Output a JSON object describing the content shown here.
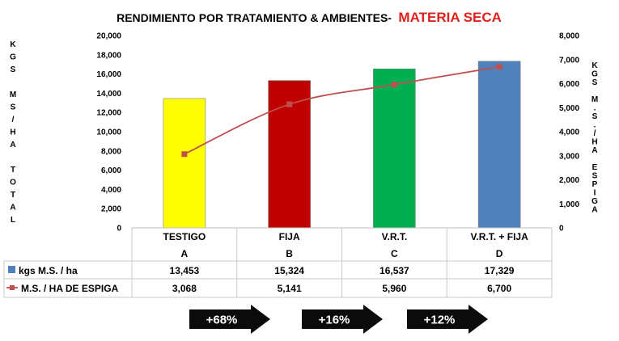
{
  "chart_data": {
    "type": "bar",
    "title": "RENDIMIENTO POR TRATAMIENTO & AMBIENTES-",
    "title_highlight": "MATERIA SECA",
    "categories": [
      "TESTIGO",
      "FIJA",
      "V.R.T.",
      "V.R.T. + FIJA"
    ],
    "category_letters": [
      "A",
      "B",
      "C",
      "D"
    ],
    "ylabel": "KGS MS/HA TOTAL",
    "y2label": "KGS M.S./HA ESPIGA",
    "ylim": [
      0,
      20000
    ],
    "y2lim": [
      0,
      8000
    ],
    "yticks": [
      "0",
      "2,000",
      "4,000",
      "6,000",
      "8,000",
      "10,000",
      "12,000",
      "14,000",
      "16,000",
      "18,000",
      "20,000"
    ],
    "y2ticks": [
      "0",
      "1,000",
      "2,000",
      "3,000",
      "4,000",
      "5,000",
      "6,000",
      "7,000",
      "8,000"
    ],
    "series": [
      {
        "name": "kgs M.S. / ha",
        "type": "bar",
        "axis": "left",
        "values": [
          13453,
          15324,
          16537,
          17329
        ],
        "labels": [
          "13,453",
          "15,324",
          "16,537",
          "17,329"
        ],
        "colors": [
          "#ffff00",
          "#c00000",
          "#00b050",
          "#4f81bd"
        ]
      },
      {
        "name": "M.S. / HA DE ESPIGA",
        "type": "line",
        "axis": "right",
        "values": [
          3068,
          5141,
          5960,
          6700
        ],
        "labels": [
          "3,068",
          "5,141",
          "5,960",
          "6,700"
        ],
        "color": "#c0504d"
      }
    ],
    "grid": false,
    "legend": "data-table"
  },
  "arrows": [
    "+68%",
    "+16%",
    "+12%"
  ]
}
